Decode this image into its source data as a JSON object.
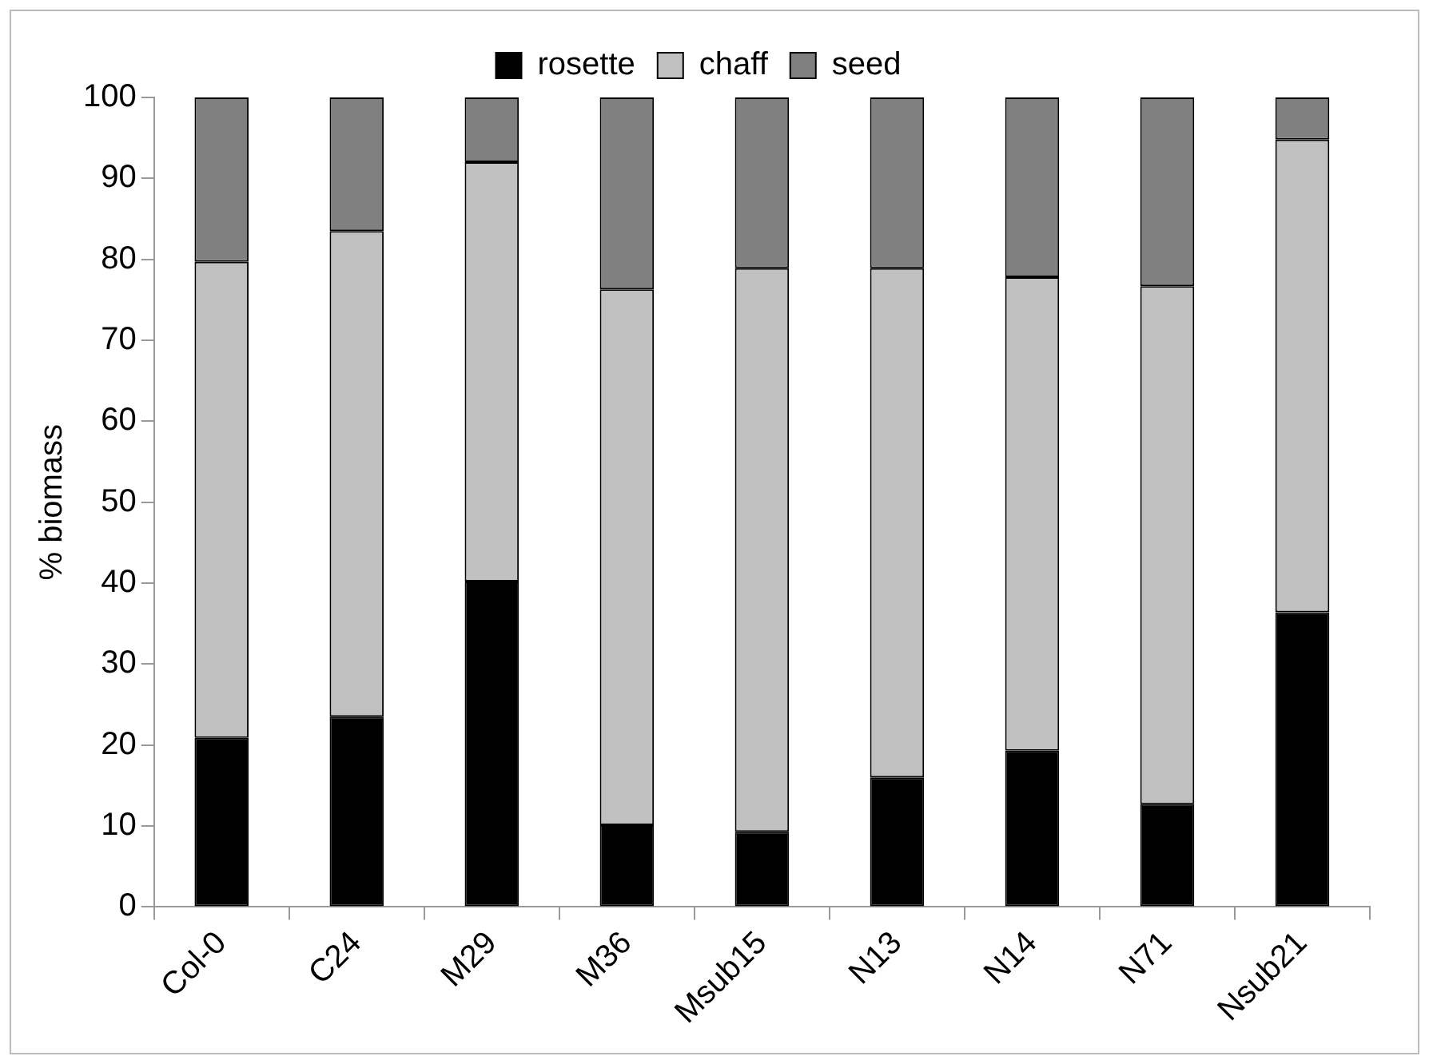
{
  "chart_data": {
    "type": "bar",
    "stacked": true,
    "ylabel": "% biomass",
    "categories": [
      "Col-0",
      "C24",
      "M29",
      "M36",
      "Msub15",
      "N13",
      "N14",
      "N71",
      "Nsub21"
    ],
    "series": [
      {
        "name": "rosette",
        "color": "#000000",
        "values": [
          20.9,
          23.5,
          40.2,
          10.1,
          9.3,
          16.0,
          19.3,
          12.7,
          36.4
        ]
      },
      {
        "name": "chaff",
        "color": "#c0c0c0",
        "values": [
          58.8,
          60.0,
          51.8,
          66.2,
          69.6,
          62.9,
          58.5,
          64.0,
          58.4
        ]
      },
      {
        "name": "seed",
        "color": "#808080",
        "values": [
          20.3,
          16.5,
          8.0,
          23.7,
          21.1,
          21.1,
          22.2,
          23.3,
          5.2
        ]
      }
    ],
    "ylim": [
      0,
      100
    ],
    "yticks": [
      0,
      10,
      20,
      30,
      40,
      50,
      60,
      70,
      80,
      90,
      100
    ],
    "grid": false,
    "legend": "top"
  }
}
